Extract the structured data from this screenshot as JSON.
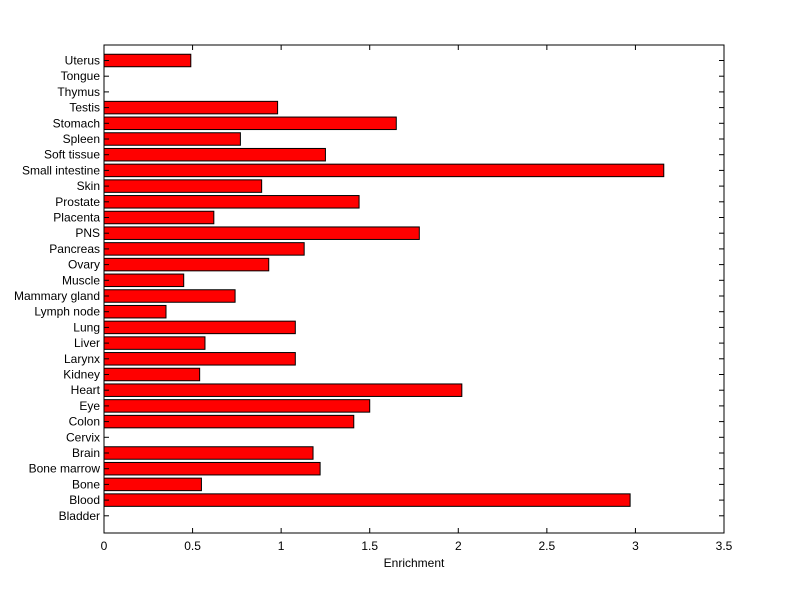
{
  "chart_data": {
    "type": "bar",
    "orientation": "horizontal",
    "title": "",
    "xlabel": "Enrichment",
    "ylabel": "",
    "xlim": [
      0,
      3.5
    ],
    "xticks": [
      "0",
      "0.5",
      "1",
      "1.5",
      "2",
      "2.5",
      "3",
      "3.5"
    ],
    "grid": false,
    "bar_color": "#ff0000",
    "categories": [
      "Uterus",
      "Tongue",
      "Thymus",
      "Testis",
      "Stomach",
      "Spleen",
      "Soft tissue",
      "Small intestine",
      "Skin",
      "Prostate",
      "Placenta",
      "PNS",
      "Pancreas",
      "Ovary",
      "Muscle",
      "Mammary gland",
      "Lymph node",
      "Lung",
      "Liver",
      "Larynx",
      "Kidney",
      "Heart",
      "Eye",
      "Colon",
      "Cervix",
      "Brain",
      "Bone marrow",
      "Bone",
      "Blood",
      "Bladder"
    ],
    "values": [
      0.49,
      0,
      0,
      0.98,
      1.65,
      0.77,
      1.25,
      3.16,
      0.89,
      1.44,
      0.62,
      1.78,
      1.13,
      0.93,
      0.45,
      0.74,
      0.35,
      1.08,
      0.57,
      1.08,
      0.54,
      2.02,
      1.5,
      1.41,
      0,
      1.18,
      1.22,
      0.55,
      2.97,
      0
    ]
  }
}
